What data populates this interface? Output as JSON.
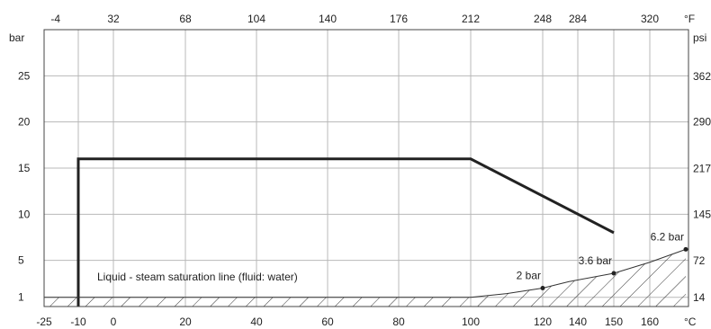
{
  "chart_data": {
    "type": "line",
    "title": "",
    "x_axis_bottom": {
      "unit": "°C",
      "ticks": [
        -25,
        -10,
        0,
        20,
        40,
        60,
        80,
        100,
        120,
        140,
        150,
        160
      ],
      "range": [
        -25,
        170
      ]
    },
    "x_axis_top": {
      "unit": "°F",
      "ticks": [
        "-4",
        "32",
        "68",
        "104",
        "140",
        "176",
        "212",
        "248",
        "284",
        "320"
      ]
    },
    "y_axis_left": {
      "unit": "bar",
      "ticks": [
        1,
        5,
        10,
        15,
        20,
        25
      ],
      "range": [
        0,
        30
      ]
    },
    "y_axis_right": {
      "unit": "psi",
      "ticks": [
        "14",
        "72",
        "145",
        "217",
        "290",
        "362"
      ]
    },
    "grid": true,
    "series": [
      {
        "kind": "pressure-temperature limit",
        "color": "#222222",
        "points": [
          [
            -10,
            0
          ],
          [
            -10,
            16
          ],
          [
            100,
            16
          ],
          [
            150,
            8
          ]
        ]
      },
      {
        "kind": "saturation curve",
        "color": "#333333",
        "points": [
          [
            -25,
            1
          ],
          [
            100,
            1
          ],
          [
            110,
            1.4
          ],
          [
            120,
            2
          ],
          [
            135,
            2.7
          ],
          [
            150,
            3.6
          ],
          [
            160,
            4.8
          ],
          [
            170,
            6.2
          ]
        ],
        "hatched_below": true
      }
    ],
    "point_labels": [
      {
        "x": 120,
        "y": 2,
        "label": "2 bar"
      },
      {
        "x": 150,
        "y": 3.6,
        "label": "3.6 bar"
      },
      {
        "x": 170,
        "y": 6.2,
        "label": "6.2 bar"
      }
    ],
    "annotation": "Liquid - steam saturation line (fluid: water)"
  }
}
